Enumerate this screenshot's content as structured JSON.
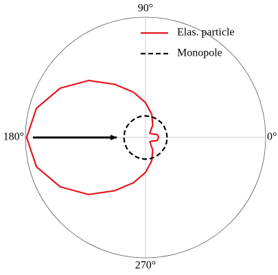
{
  "chart_data": {
    "type": "polar",
    "theta": [
      0,
      15,
      30,
      45,
      60,
      75,
      90,
      105,
      120,
      135,
      150,
      165,
      180,
      195,
      210,
      225,
      240,
      255,
      270,
      285,
      300,
      315,
      330,
      345,
      360
    ],
    "series": [
      {
        "name": "Elas. particle",
        "color": "#e8141c",
        "dash": "solid",
        "values": [
          0.11,
          0.1,
          0.06,
          0.05,
          0.12,
          0.2,
          0.29,
          0.39,
          0.51,
          0.67,
          0.82,
          0.94,
          0.99,
          0.94,
          0.82,
          0.67,
          0.51,
          0.39,
          0.29,
          0.2,
          0.12,
          0.05,
          0.06,
          0.1,
          0.11
        ]
      },
      {
        "name": "Monopole",
        "color": "#000000",
        "dash": "dashed",
        "values": [
          0.18,
          0.18,
          0.18,
          0.18,
          0.18,
          0.18,
          0.18,
          0.18,
          0.18,
          0.18,
          0.18,
          0.18,
          0.18,
          0.18,
          0.18,
          0.18,
          0.18,
          0.18,
          0.18,
          0.18,
          0.18,
          0.18,
          0.18,
          0.18,
          0.18
        ]
      }
    ],
    "rlim": [
      0,
      1
    ],
    "thetaticks": [
      {
        "value": 0,
        "label": "0°"
      },
      {
        "value": 90,
        "label": "90°"
      },
      {
        "value": 180,
        "label": "180°"
      },
      {
        "value": 270,
        "label": "270°"
      }
    ],
    "grid": true
  }
}
